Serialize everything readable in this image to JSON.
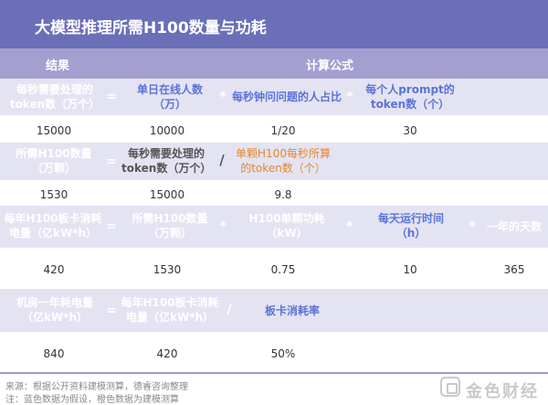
{
  "title": "大模型推理所需H100数量与功耗",
  "header": {
    "result": "结果",
    "formula": "计算公式"
  },
  "ops": {
    "eq": "=",
    "mul": "*",
    "div": "/"
  },
  "rows": [
    {
      "result": "每秒需要处理的token数（万个）",
      "terms": [
        "单日在线人数（万）",
        "每秒钟问问题的人占比",
        "每个人prompt的token数（个）"
      ],
      "values": [
        "15000",
        "10000",
        "1/20",
        "30"
      ]
    },
    {
      "result": "所需H100数量（万颗）",
      "terms": [
        "每秒需要处理的token数（万个）",
        "单颗H100每秒所算的token数（个）"
      ],
      "values": [
        "1530",
        "15000",
        "9.8"
      ]
    },
    {
      "result": "每年H100板卡消耗电量（亿kW*h）",
      "terms": [
        "所需H100数量（万颗）",
        "H100单颗功耗（kW）",
        "每天运行时间（h）",
        "一年的天数"
      ],
      "values": [
        "420",
        "1530",
        "0.75",
        "10",
        "365"
      ]
    },
    {
      "result": "机房一年耗电量（亿kW*h）",
      "terms": [
        "每年H100板卡消耗电量（亿kW*h）",
        "板卡消耗率"
      ],
      "values": [
        "840",
        "420",
        "50%"
      ]
    }
  ],
  "footer": {
    "source": "来源：根据公开资料建模测算，德睿咨询整理",
    "note": "注：蓝色数据为假设，橙色数据为建模测算"
  },
  "logo": {
    "text": "金色财经"
  },
  "colors": {
    "title_bg": "#6b6fb8",
    "header_bg": "#a39fd0",
    "band_bg": "#e4e3f2",
    "assumption_blue": "#5b74d6",
    "modeled_orange": "#e7862b"
  }
}
